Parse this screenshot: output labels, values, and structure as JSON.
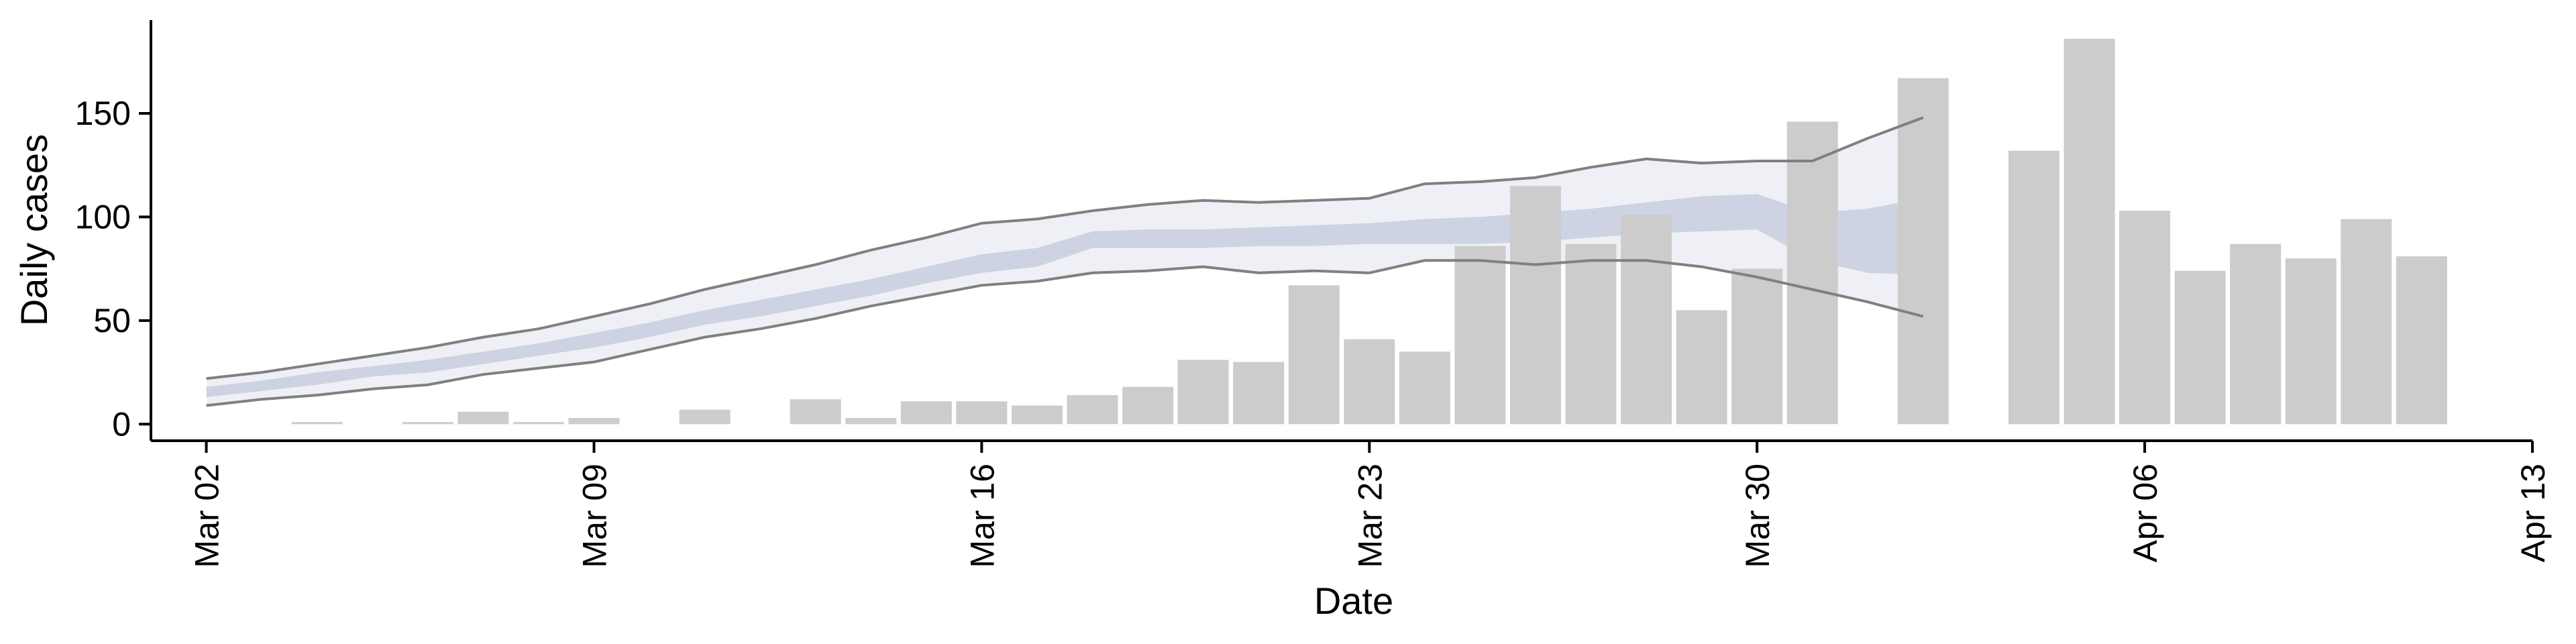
{
  "chart_data": {
    "type": "bar",
    "xlabel": "Date",
    "ylabel": "Daily cases",
    "ylim": [
      -8,
      195
    ],
    "xlim": [
      "2020-03-01",
      "2020-04-13"
    ],
    "x_ticks": [
      {
        "date": "2020-03-02",
        "label": "Mar 02"
      },
      {
        "date": "2020-03-09",
        "label": "Mar 09"
      },
      {
        "date": "2020-03-16",
        "label": "Mar 16"
      },
      {
        "date": "2020-03-23",
        "label": "Mar 23"
      },
      {
        "date": "2020-03-30",
        "label": "Mar 30"
      },
      {
        "date": "2020-04-06",
        "label": "Apr 06"
      },
      {
        "date": "2020-04-13",
        "label": "Apr 13"
      }
    ],
    "y_ticks": [
      {
        "value": 0,
        "label": "0"
      },
      {
        "value": 50,
        "label": "50"
      },
      {
        "value": 100,
        "label": "100"
      },
      {
        "value": 150,
        "label": "150"
      }
    ],
    "grid": false,
    "colors": {
      "bars": "#cccccc",
      "band_outer": "#eceef4",
      "band_inner": "#c9cfe0",
      "bound_lines": "#808080"
    },
    "bars": [
      {
        "date": "2020-03-04",
        "value": 1
      },
      {
        "date": "2020-03-06",
        "value": 1
      },
      {
        "date": "2020-03-07",
        "value": 6
      },
      {
        "date": "2020-03-08",
        "value": 1
      },
      {
        "date": "2020-03-09",
        "value": 3
      },
      {
        "date": "2020-03-11",
        "value": 7
      },
      {
        "date": "2020-03-13",
        "value": 12
      },
      {
        "date": "2020-03-14",
        "value": 3
      },
      {
        "date": "2020-03-15",
        "value": 11
      },
      {
        "date": "2020-03-16",
        "value": 11
      },
      {
        "date": "2020-03-17",
        "value": 9
      },
      {
        "date": "2020-03-18",
        "value": 14
      },
      {
        "date": "2020-03-19",
        "value": 18
      },
      {
        "date": "2020-03-20",
        "value": 31
      },
      {
        "date": "2020-03-21",
        "value": 30
      },
      {
        "date": "2020-03-22",
        "value": 67
      },
      {
        "date": "2020-03-23",
        "value": 41
      },
      {
        "date": "2020-03-24",
        "value": 35
      },
      {
        "date": "2020-03-25",
        "value": 86
      },
      {
        "date": "2020-03-26",
        "value": 115
      },
      {
        "date": "2020-03-27",
        "value": 87
      },
      {
        "date": "2020-03-28",
        "value": 101
      },
      {
        "date": "2020-03-29",
        "value": 55
      },
      {
        "date": "2020-03-30",
        "value": 75
      },
      {
        "date": "2020-03-31",
        "value": 146
      },
      {
        "date": "2020-04-02",
        "value": 167
      },
      {
        "date": "2020-04-04",
        "value": 132
      },
      {
        "date": "2020-04-05",
        "value": 186
      },
      {
        "date": "2020-04-06",
        "value": 103
      },
      {
        "date": "2020-04-07",
        "value": 74
      },
      {
        "date": "2020-04-08",
        "value": 87
      },
      {
        "date": "2020-04-09",
        "value": 80
      },
      {
        "date": "2020-04-10",
        "value": 99
      },
      {
        "date": "2020-04-11",
        "value": 81
      }
    ],
    "nowcast": {
      "dates": [
        "2020-03-02",
        "2020-03-03",
        "2020-03-04",
        "2020-03-05",
        "2020-03-06",
        "2020-03-07",
        "2020-03-08",
        "2020-03-09",
        "2020-03-10",
        "2020-03-11",
        "2020-03-12",
        "2020-03-13",
        "2020-03-14",
        "2020-03-15",
        "2020-03-16",
        "2020-03-17",
        "2020-03-18",
        "2020-03-19",
        "2020-03-20",
        "2020-03-21",
        "2020-03-22",
        "2020-03-23",
        "2020-03-24",
        "2020-03-25",
        "2020-03-26",
        "2020-03-27",
        "2020-03-28",
        "2020-03-29",
        "2020-03-30",
        "2020-03-31",
        "2020-04-01",
        "2020-04-02"
      ],
      "outer_lower": [
        9,
        12,
        14,
        17,
        19,
        24,
        27,
        30,
        36,
        42,
        46,
        51,
        57,
        62,
        67,
        69,
        73,
        74,
        76,
        73,
        74,
        73,
        79,
        79,
        77,
        79,
        79,
        76,
        71,
        65,
        59,
        52
      ],
      "outer_upper": [
        22,
        25,
        29,
        33,
        37,
        42,
        46,
        52,
        58,
        65,
        71,
        77,
        84,
        90,
        97,
        99,
        103,
        106,
        108,
        107,
        108,
        109,
        116,
        117,
        119,
        124,
        128,
        126,
        127,
        127,
        138,
        148
      ],
      "inner_lower": [
        13,
        16,
        19,
        23,
        25,
        29,
        33,
        37,
        42,
        48,
        52,
        57,
        62,
        68,
        73,
        76,
        85,
        85,
        85,
        86,
        86,
        87,
        87,
        87,
        88,
        90,
        92,
        93,
        94,
        79,
        73,
        72
      ],
      "inner_upper": [
        18,
        21,
        25,
        28,
        31,
        35,
        39,
        44,
        49,
        55,
        60,
        65,
        70,
        76,
        82,
        85,
        93,
        94,
        94,
        95,
        96,
        97,
        99,
        100,
        102,
        104,
        107,
        110,
        111,
        102,
        104,
        109
      ]
    }
  }
}
